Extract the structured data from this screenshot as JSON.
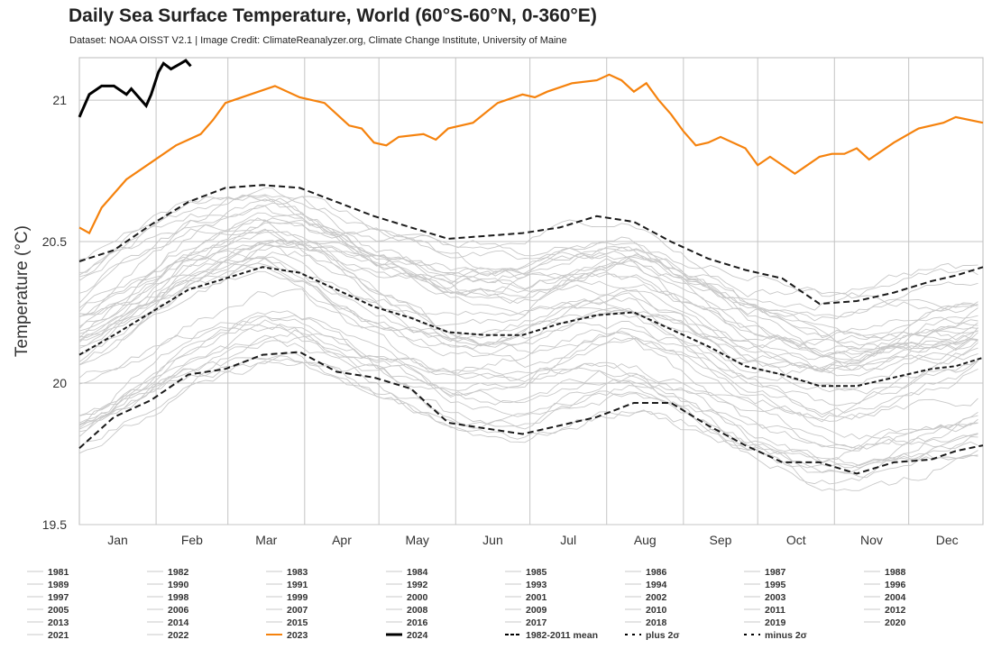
{
  "chart_data": {
    "type": "line",
    "title": "Daily Sea Surface Temperature, World (60°S-60°N, 0-360°E)",
    "subtitle": "Dataset: NOAA OISST V2.1 | Image Credit: ClimateReanalyzer.org, Climate Change Institute, University of Maine",
    "ylabel": "Temperature (°C)",
    "xlabel": "",
    "ylim": [
      19.5,
      21.15
    ],
    "xlim": [
      1,
      366
    ],
    "yticks": [
      19.5,
      20,
      20.5,
      21
    ],
    "ytick_labels": [
      "19.5",
      "20",
      "20.5",
      "21"
    ],
    "months": [
      "Jan",
      "Feb",
      "Mar",
      "Apr",
      "May",
      "Jun",
      "Jul",
      "Aug",
      "Sep",
      "Oct",
      "Nov",
      "Dec"
    ],
    "grid": true,
    "legend_position": "bottom",
    "colors": {
      "historical": "#c8c8c8",
      "y2023": "#f5820d",
      "y2024": "#000000",
      "stats": "#000000"
    },
    "series_2023": {
      "name": "2023",
      "x": [
        1,
        5,
        10,
        20,
        30,
        40,
        50,
        55,
        60,
        70,
        80,
        90,
        100,
        110,
        115,
        120,
        125,
        130,
        140,
        145,
        150,
        160,
        170,
        180,
        185,
        190,
        200,
        210,
        215,
        220,
        225,
        230,
        235,
        240,
        245,
        250,
        255,
        260,
        270,
        275,
        280,
        290,
        300,
        305,
        310,
        315,
        320,
        330,
        340,
        350,
        355,
        366
      ],
      "y": [
        20.55,
        20.53,
        20.62,
        20.72,
        20.78,
        20.84,
        20.88,
        20.93,
        20.99,
        21.02,
        21.05,
        21.01,
        20.99,
        20.91,
        20.9,
        20.85,
        20.84,
        20.87,
        20.88,
        20.86,
        20.9,
        20.92,
        20.99,
        21.02,
        21.01,
        21.03,
        21.06,
        21.07,
        21.09,
        21.07,
        21.03,
        21.06,
        21.0,
        20.95,
        20.89,
        20.84,
        20.85,
        20.87,
        20.83,
        20.77,
        20.8,
        20.74,
        20.8,
        20.81,
        20.81,
        20.83,
        20.79,
        20.85,
        20.9,
        20.92,
        20.94,
        20.92
      ]
    },
    "series_2024": {
      "name": "2024",
      "x": [
        1,
        5,
        10,
        15,
        20,
        22,
        25,
        28,
        30,
        33,
        35,
        38,
        40,
        42,
        44,
        46
      ],
      "y": [
        20.94,
        21.02,
        21.05,
        21.05,
        21.02,
        21.04,
        21.01,
        20.98,
        21.02,
        21.1,
        21.13,
        21.11,
        21.12,
        21.13,
        21.14,
        21.12
      ]
    },
    "mean_1982_2011": {
      "name": "1982-2011 mean",
      "x": [
        1,
        15,
        30,
        45,
        60,
        75,
        90,
        105,
        120,
        135,
        150,
        165,
        180,
        195,
        210,
        225,
        240,
        255,
        270,
        285,
        300,
        315,
        330,
        345,
        355,
        366
      ],
      "y": [
        20.1,
        20.17,
        20.25,
        20.33,
        20.37,
        20.41,
        20.39,
        20.33,
        20.27,
        20.23,
        20.18,
        20.17,
        20.17,
        20.21,
        20.24,
        20.25,
        20.19,
        20.13,
        20.06,
        20.03,
        19.99,
        19.99,
        20.02,
        20.05,
        20.06,
        20.09
      ]
    },
    "plus_2sigma": {
      "name": "plus 2σ",
      "x": [
        1,
        15,
        30,
        45,
        60,
        75,
        90,
        105,
        120,
        135,
        150,
        165,
        180,
        195,
        210,
        225,
        240,
        255,
        270,
        285,
        300,
        315,
        330,
        345,
        355,
        366
      ],
      "y": [
        20.43,
        20.47,
        20.56,
        20.64,
        20.69,
        20.7,
        20.69,
        20.64,
        20.59,
        20.55,
        20.51,
        20.52,
        20.53,
        20.55,
        20.59,
        20.57,
        20.5,
        20.44,
        20.4,
        20.37,
        20.28,
        20.29,
        20.32,
        20.36,
        20.38,
        20.41
      ]
    },
    "minus_2sigma": {
      "name": "minus 2σ",
      "x": [
        1,
        15,
        30,
        45,
        60,
        75,
        90,
        105,
        120,
        135,
        150,
        165,
        180,
        195,
        210,
        225,
        240,
        255,
        270,
        285,
        300,
        315,
        330,
        345,
        355,
        366
      ],
      "y": [
        19.77,
        19.88,
        19.94,
        20.03,
        20.05,
        20.1,
        20.11,
        20.04,
        20.02,
        19.98,
        19.86,
        19.84,
        19.82,
        19.85,
        19.88,
        19.93,
        19.93,
        19.85,
        19.78,
        19.72,
        19.72,
        19.68,
        19.72,
        19.73,
        19.76,
        19.78
      ]
    },
    "legend": [
      {
        "label": "1981",
        "style": "hist"
      },
      {
        "label": "1982",
        "style": "hist"
      },
      {
        "label": "1983",
        "style": "hist"
      },
      {
        "label": "1984",
        "style": "hist"
      },
      {
        "label": "1985",
        "style": "hist"
      },
      {
        "label": "1986",
        "style": "hist"
      },
      {
        "label": "1987",
        "style": "hist"
      },
      {
        "label": "1988",
        "style": "hist"
      },
      {
        "label": "1989",
        "style": "hist"
      },
      {
        "label": "1990",
        "style": "hist"
      },
      {
        "label": "1991",
        "style": "hist"
      },
      {
        "label": "1992",
        "style": "hist"
      },
      {
        "label": "1993",
        "style": "hist"
      },
      {
        "label": "1994",
        "style": "hist"
      },
      {
        "label": "1995",
        "style": "hist"
      },
      {
        "label": "1996",
        "style": "hist"
      },
      {
        "label": "1997",
        "style": "hist"
      },
      {
        "label": "1998",
        "style": "hist"
      },
      {
        "label": "1999",
        "style": "hist"
      },
      {
        "label": "2000",
        "style": "hist"
      },
      {
        "label": "2001",
        "style": "hist"
      },
      {
        "label": "2002",
        "style": "hist"
      },
      {
        "label": "2003",
        "style": "hist"
      },
      {
        "label": "2004",
        "style": "hist"
      },
      {
        "label": "2005",
        "style": "hist"
      },
      {
        "label": "2006",
        "style": "hist"
      },
      {
        "label": "2007",
        "style": "hist"
      },
      {
        "label": "2008",
        "style": "hist"
      },
      {
        "label": "2009",
        "style": "hist"
      },
      {
        "label": "2010",
        "style": "hist"
      },
      {
        "label": "2011",
        "style": "hist"
      },
      {
        "label": "2012",
        "style": "hist"
      },
      {
        "label": "2013",
        "style": "hist"
      },
      {
        "label": "2014",
        "style": "hist"
      },
      {
        "label": "2015",
        "style": "hist"
      },
      {
        "label": "2016",
        "style": "hist"
      },
      {
        "label": "2017",
        "style": "hist"
      },
      {
        "label": "2018",
        "style": "hist"
      },
      {
        "label": "2019",
        "style": "hist"
      },
      {
        "label": "2020",
        "style": "hist"
      },
      {
        "label": "2021",
        "style": "hist"
      },
      {
        "label": "2022",
        "style": "hist"
      },
      {
        "label": "2023",
        "style": "y2023"
      },
      {
        "label": "2024",
        "style": "y2024"
      },
      {
        "label": "1982-2011 mean",
        "style": "mean"
      },
      {
        "label": "plus 2σ",
        "style": "sigma"
      },
      {
        "label": "minus 2σ",
        "style": "sigma"
      }
    ]
  }
}
